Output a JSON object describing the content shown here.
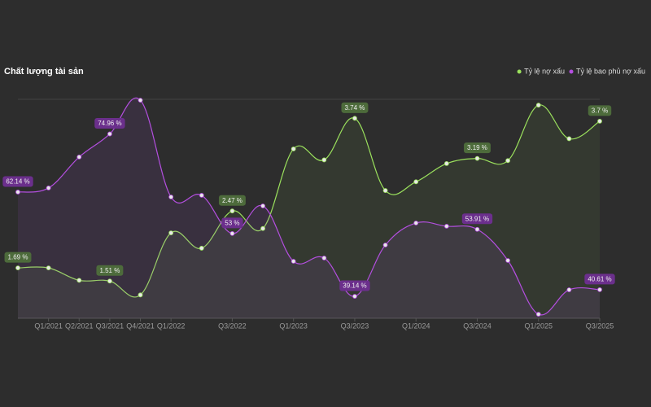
{
  "chart_data": {
    "type": "line",
    "title": "Chất lượng tài sản",
    "categories": [
      null,
      "Q1/2021",
      "Q2/2021",
      "Q3/2021",
      "Q4/2021",
      "Q1/2022",
      null,
      "Q3/2022",
      null,
      "Q1/2023",
      null,
      "Q3/2023",
      null,
      "Q1/2024",
      null,
      "Q3/2024",
      null,
      "Q1/2025",
      null,
      "Q3/2025"
    ],
    "ylim": [
      1,
      4
    ],
    "y2lim": [
      34.3,
      82.6
    ],
    "legend": "top-right",
    "series": [
      {
        "name": "Tỷ lệ nợ xấu",
        "color": "#9be15d",
        "values": [
          1.69,
          1.69,
          1.52,
          1.51,
          1.32,
          2.17,
          1.96,
          2.47,
          2.23,
          3.32,
          3.17,
          3.74,
          2.75,
          2.87,
          3.12,
          3.19,
          3.16,
          3.92,
          3.46,
          3.7
        ],
        "value_labels": [
          "1.69 %",
          null,
          null,
          "1.51 %",
          null,
          null,
          null,
          "2.47 %",
          null,
          null,
          null,
          "3.74 %",
          null,
          null,
          null,
          "3.19 %",
          null,
          null,
          null,
          "3.7 %"
        ]
      },
      {
        "name": "Tỷ lệ bao phủ nợ xấu",
        "color": "#b44fe0",
        "axis": "y2",
        "values": [
          62.14,
          63.04,
          69.87,
          74.96,
          82.4,
          61.06,
          61.42,
          53,
          59.08,
          46.87,
          47.59,
          39.14,
          50.46,
          55.31,
          54.6,
          53.91,
          47.05,
          35.19,
          40.58,
          40.61
        ],
        "value_labels": [
          "62.14 %",
          null,
          null,
          "74.96 %",
          null,
          null,
          null,
          "53 %",
          null,
          null,
          null,
          "39.14 %",
          null,
          null,
          null,
          "53.91 %",
          null,
          null,
          null,
          "40.61 %"
        ]
      }
    ]
  }
}
